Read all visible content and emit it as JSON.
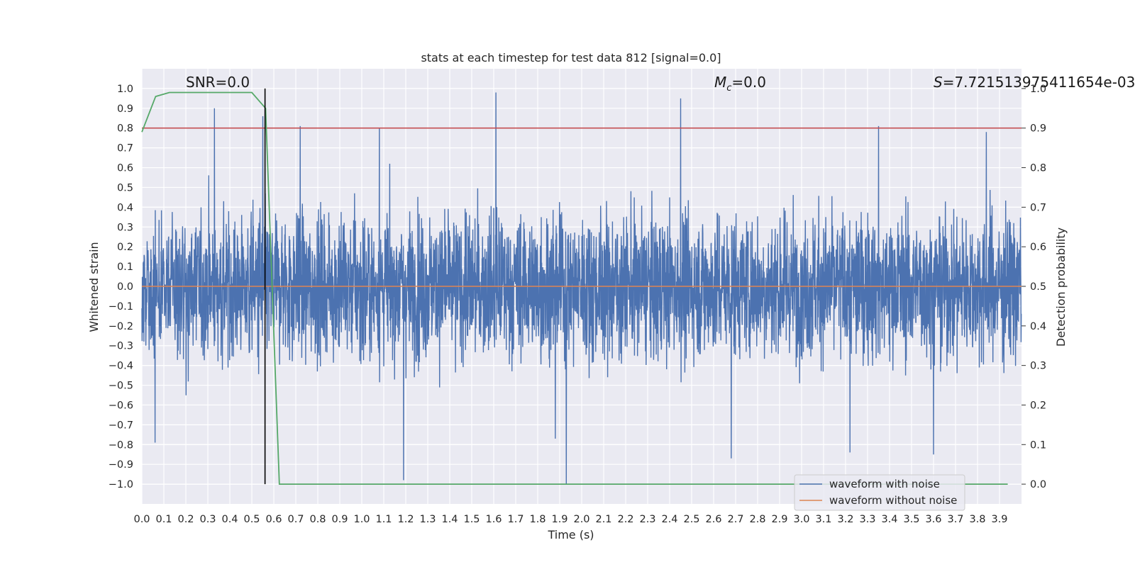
{
  "chart_data": {
    "type": "line",
    "title": "stats at each timestep for test data 812 [signal=0.0]",
    "xlabel": "Time (s)",
    "ylabel": "Whitened strain",
    "ylabel_right": "Detection probability",
    "xlim": [
      0.0,
      4.0
    ],
    "ylim": [
      -1.1,
      1.1
    ],
    "ylim_right": [
      -0.05,
      1.05
    ],
    "x_ticks": [
      0.0,
      0.1,
      0.2,
      0.3,
      0.4,
      0.5,
      0.6,
      0.7,
      0.8,
      0.9,
      1.0,
      1.1,
      1.2,
      1.3,
      1.4,
      1.5,
      1.6,
      1.7,
      1.8,
      1.9,
      2.0,
      2.1,
      2.2,
      2.3,
      2.4,
      2.5,
      2.6,
      2.7,
      2.8,
      2.9,
      3.0,
      3.1,
      3.2,
      3.3,
      3.4,
      3.5,
      3.6,
      3.7,
      3.8,
      3.9
    ],
    "x_tick_labels": [
      "0.0",
      "0.1",
      "0.2",
      "0.3",
      "0.4",
      "0.5",
      "0.6",
      "0.7",
      "0.8",
      "0.9",
      "1.0",
      "1.1",
      "1.2",
      "1.3",
      "1.4",
      "1.5",
      "1.6",
      "1.7",
      "1.8",
      "1.9",
      "2.0",
      "2.1",
      "2.2",
      "2.3",
      "2.4",
      "2.5",
      "2.6",
      "2.7",
      "2.8",
      "2.9",
      "3.0",
      "3.1",
      "3.2",
      "3.3",
      "3.4",
      "3.5",
      "3.6",
      "3.7",
      "3.8",
      "3.9"
    ],
    "y_ticks": [
      1.0,
      0.9,
      0.8,
      0.7,
      0.6,
      0.5,
      0.4,
      0.3,
      0.2,
      0.1,
      0.0,
      -0.1,
      -0.2,
      -0.3,
      -0.4,
      -0.5,
      -0.6,
      -0.7,
      -0.8,
      -0.9,
      -1.0
    ],
    "y_tick_labels": [
      "1.0",
      "0.9",
      "0.8",
      "0.7",
      "0.6",
      "0.5",
      "0.4",
      "0.3",
      "0.2",
      "0.1",
      "0.0",
      "−0.1",
      "−0.2",
      "−0.3",
      "−0.4",
      "−0.5",
      "−0.6",
      "−0.7",
      "−0.8",
      "−0.9",
      "−1.0"
    ],
    "y_right_ticks": [
      1.0,
      0.9,
      0.8,
      0.7,
      0.6,
      0.5,
      0.4,
      0.3,
      0.2,
      0.1,
      0.0
    ],
    "y_right_tick_labels": [
      "1.0",
      "0.9",
      "0.8",
      "0.7",
      "0.6",
      "0.5",
      "0.4",
      "0.3",
      "0.2",
      "0.1",
      "0.0"
    ],
    "series": [
      {
        "name": "waveform with noise",
        "color": "#4c72b0",
        "samples": 4000,
        "amplitude_rms": 0.18,
        "seed": 812,
        "spikes": [
          {
            "t": 0.06,
            "v": -0.79
          },
          {
            "t": 0.33,
            "v": 0.9
          },
          {
            "t": 0.55,
            "v": 0.86
          },
          {
            "t": 0.72,
            "v": 0.81
          },
          {
            "t": 1.08,
            "v": 0.8
          },
          {
            "t": 1.19,
            "v": -0.98
          },
          {
            "t": 1.61,
            "v": 0.98
          },
          {
            "t": 1.88,
            "v": -0.77
          },
          {
            "t": 1.93,
            "v": -1.0
          },
          {
            "t": 2.45,
            "v": 0.95
          },
          {
            "t": 2.68,
            "v": -0.87
          },
          {
            "t": 3.22,
            "v": -0.84
          },
          {
            "t": 3.35,
            "v": 0.81
          },
          {
            "t": 3.6,
            "v": -0.85
          },
          {
            "t": 3.84,
            "v": 0.78
          }
        ]
      },
      {
        "name": "waveform without noise",
        "color": "#dd8452",
        "t": [
          0.0,
          4.0
        ],
        "values": [
          0.0,
          0.0
        ]
      },
      {
        "name": "detection probability",
        "color": "#55a868",
        "axis": "right",
        "t": [
          0.0,
          0.0625,
          0.125,
          0.1875,
          0.25,
          0.3125,
          0.375,
          0.4375,
          0.5,
          0.5625,
          0.625,
          0.6875,
          0.75,
          1.0,
          2.0,
          3.0,
          3.9375
        ],
        "values": [
          0.89,
          0.98,
          0.99,
          0.99,
          0.99,
          0.99,
          0.99,
          0.99,
          0.99,
          0.95,
          0.0,
          0.0,
          0.0,
          0.0,
          0.0,
          0.0,
          0.0
        ]
      }
    ],
    "threshold_line": {
      "value_right": 0.9,
      "color": "#c44e52"
    },
    "vertical_line": {
      "t": 0.56,
      "color": "#000000"
    },
    "annotations": {
      "snr": "SNR=0.0",
      "mc_symbol": "M",
      "mc_sub": "c",
      "mc_value": "=0.0",
      "s_symbol": "S",
      "s_value": "=7.721513975411654e-03"
    },
    "legend": {
      "position": "bottom-right",
      "entries": [
        {
          "label": "waveform with noise",
          "color": "#4c72b0"
        },
        {
          "label": "waveform without noise",
          "color": "#dd8452"
        }
      ]
    },
    "grid": true,
    "background": "#eaeaf2"
  }
}
